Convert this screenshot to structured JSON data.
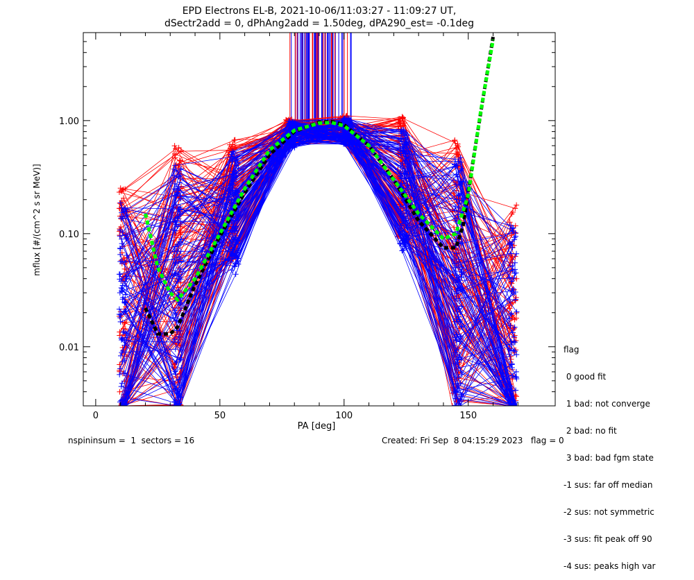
{
  "colors": {
    "series_a": "#ff0000",
    "series_b": "#0000ff",
    "fit_green": "#00ff00",
    "fit_black": "#000000"
  },
  "chart_data": {
    "type": "line",
    "title": "EPD Electrons EL-B, 2021-10-06/11:03:27 - 11:09:27 UT,",
    "subtitle": "dSectr2add = 0, dPhAng2add = 1.50deg, dPA290_est=  -0.1deg",
    "xlabel": "PA [deg]",
    "ylabel": "mflux [#/(cm^2 s sr MeV)]",
    "xlim": [
      -5,
      185
    ],
    "ylim": [
      0.003,
      6.0
    ],
    "yscale": "log",
    "xticks": [
      0,
      50,
      100,
      150
    ],
    "yticks": [
      0.01,
      0.1,
      1.0
    ],
    "ytick_labels": [
      "0.01",
      "0.10",
      "1.00"
    ],
    "grid": false,
    "series": [
      {
        "color": "red",
        "marker": "+",
        "x": [
          11,
          33,
          55,
          78,
          100,
          123,
          145,
          168
        ],
        "y": [
          0.016,
          0.04,
          0.2,
          0.78,
          0.85,
          0.32,
          0.045,
          0.012
        ]
      },
      {
        "color": "blue",
        "marker": "+",
        "x": [
          11,
          33,
          56,
          79,
          101,
          124,
          146,
          168
        ],
        "y": [
          0.012,
          0.03,
          0.15,
          0.75,
          0.8,
          0.25,
          0.03,
          0.008
        ]
      },
      {
        "color": "black",
        "style": "dashed",
        "x": [
          20,
          25,
          30,
          33,
          40,
          50,
          60,
          70,
          80,
          90,
          95,
          100,
          110,
          120,
          130,
          140,
          145,
          148,
          152,
          156,
          160
        ],
        "y": [
          0.022,
          0.013,
          0.013,
          0.015,
          0.035,
          0.095,
          0.23,
          0.5,
          0.8,
          0.97,
          0.98,
          0.92,
          0.6,
          0.3,
          0.13,
          0.075,
          0.075,
          0.12,
          0.45,
          1.6,
          5.5
        ]
      },
      {
        "color": "green",
        "style": "dashed",
        "x": [
          20,
          25,
          30,
          33,
          40,
          50,
          60,
          70,
          80,
          90,
          95,
          100,
          110,
          120,
          130,
          140,
          145,
          150,
          155,
          160
        ],
        "y": [
          0.15,
          0.05,
          0.03,
          0.026,
          0.04,
          0.1,
          0.25,
          0.55,
          0.82,
          0.95,
          0.96,
          0.9,
          0.6,
          0.3,
          0.15,
          0.09,
          0.1,
          0.22,
          1.2,
          5.2
        ]
      }
    ]
  },
  "legend": {
    "header": "flag",
    "items": [
      " 0 good fit",
      " 1 bad: not converge",
      " 2 bad: no fit",
      " 3 bad: bad fgm state",
      "-1 sus: far off median",
      "-2 sus: not symmetric",
      "-3 sus: fit peak off 90",
      "-4 sus: peaks high var"
    ]
  },
  "footer": {
    "left": "nspininsum =  1  sectors = 16",
    "right": "Created: Fri Sep  8 04:15:29 2023   flag = 0"
  }
}
